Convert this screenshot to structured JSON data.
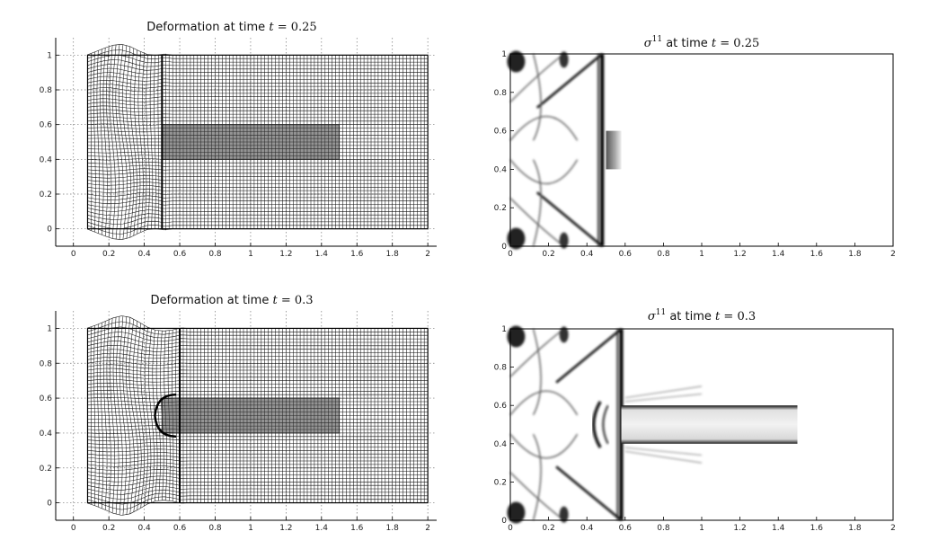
{
  "chart_data": [
    {
      "type": "mesh",
      "id": "def1",
      "title_prefix": "Deformation at time",
      "title_var": "t",
      "title_eq": "= 0.25",
      "xlim": [
        -0.1,
        2.05
      ],
      "ylim": [
        -0.1,
        1.1
      ],
      "xticks": [
        0,
        0.2,
        0.4,
        0.6,
        0.8,
        1,
        1.2,
        1.4,
        1.6,
        1.8,
        2
      ],
      "xtick_labels": [
        "0",
        "0.2",
        "0.4",
        "0.6",
        "0.8",
        "1",
        "1.2",
        "1.4",
        "1.6",
        "1.8",
        "2"
      ],
      "yticks": [
        0,
        0.2,
        0.4,
        0.6,
        0.8,
        1
      ],
      "ytick_labels": [
        "0",
        "0.2",
        "0.4",
        "0.6",
        "0.8",
        "1"
      ],
      "grid": true,
      "domain_x": [
        0.08,
        2.0
      ],
      "domain_y": [
        0,
        1
      ],
      "front_x": 0.5,
      "inclusion": {
        "x": [
          0.5,
          1.5
        ],
        "y": [
          0.4,
          0.6
        ]
      },
      "bulge": false
    },
    {
      "type": "heatmap",
      "id": "sig1",
      "title_var": "σ",
      "title_sup": "11",
      "title_rest": "at time",
      "title_t": "t",
      "title_eq": "= 0.25",
      "xlim": [
        0,
        2
      ],
      "ylim": [
        0,
        1
      ],
      "xticks": [
        0,
        0.2,
        0.4,
        0.6,
        0.8,
        1,
        1.2,
        1.4,
        1.6,
        1.8,
        2
      ],
      "xtick_labels": [
        "0",
        "0.2",
        "0.4",
        "0.6",
        "0.8",
        "1",
        "1.2",
        "1.4",
        "1.6",
        "1.8",
        "2"
      ],
      "yticks": [
        0,
        0.2,
        0.4,
        0.6,
        0.8,
        1
      ],
      "ytick_labels": [
        "0",
        "0.2",
        "0.4",
        "0.6",
        "0.8",
        "1"
      ],
      "front_x": 0.48,
      "inclusion_stress": false
    },
    {
      "type": "mesh",
      "id": "def2",
      "title_prefix": "Deformation at time",
      "title_var": "t",
      "title_eq": "= 0.3",
      "xlim": [
        -0.1,
        2.05
      ],
      "ylim": [
        -0.1,
        1.1
      ],
      "xticks": [
        0,
        0.2,
        0.4,
        0.6,
        0.8,
        1,
        1.2,
        1.4,
        1.6,
        1.8,
        2
      ],
      "xtick_labels": [
        "0",
        "0.2",
        "0.4",
        "0.6",
        "0.8",
        "1",
        "1.2",
        "1.4",
        "1.6",
        "1.8",
        "2"
      ],
      "yticks": [
        0,
        0.2,
        0.4,
        0.6,
        0.8,
        1
      ],
      "ytick_labels": [
        "0",
        "0.2",
        "0.4",
        "0.6",
        "0.8",
        "1"
      ],
      "grid": true,
      "domain_x": [
        0.08,
        2.0
      ],
      "domain_y": [
        0,
        1
      ],
      "front_x": 0.6,
      "inclusion": {
        "x": [
          0.5,
          1.5
        ],
        "y": [
          0.4,
          0.6
        ]
      },
      "bulge": true
    },
    {
      "type": "heatmap",
      "id": "sig2",
      "title_var": "σ",
      "title_sup": "11",
      "title_rest": "at time",
      "title_t": "t",
      "title_eq": "= 0.3",
      "xlim": [
        0,
        2
      ],
      "ylim": [
        0,
        1
      ],
      "xticks": [
        0,
        0.2,
        0.4,
        0.6,
        0.8,
        1,
        1.2,
        1.4,
        1.6,
        1.8,
        2
      ],
      "xtick_labels": [
        "0",
        "0.2",
        "0.4",
        "0.6",
        "0.8",
        "1",
        "1.2",
        "1.4",
        "1.6",
        "1.8",
        "2"
      ],
      "yticks": [
        0,
        0.2,
        0.4,
        0.6,
        0.8,
        1
      ],
      "ytick_labels": [
        "0",
        "0.2",
        "0.4",
        "0.6",
        "0.8",
        "1"
      ],
      "front_x": 0.58,
      "inclusion_stress": true
    }
  ]
}
